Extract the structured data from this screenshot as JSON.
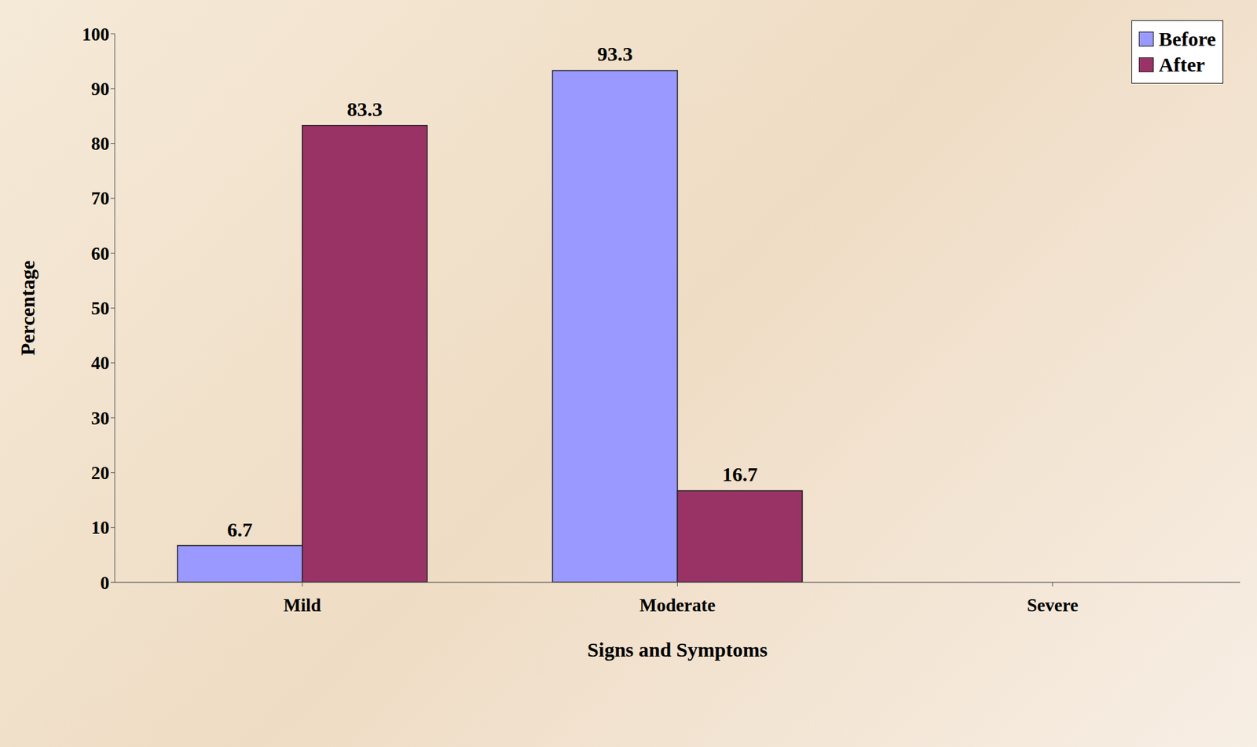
{
  "chart_data": {
    "type": "bar",
    "x_label": "Signs and Symptoms",
    "y_label": "Percentage",
    "categories": [
      "Mild",
      "Moderate",
      "Severe"
    ],
    "series": [
      {
        "name": "Before",
        "color": "#9999ff",
        "values": [
          6.7,
          93.3,
          0
        ]
      },
      {
        "name": "After",
        "color": "#993366",
        "values": [
          83.3,
          16.7,
          0
        ]
      }
    ],
    "ylim": [
      0,
      100
    ],
    "yticks": [
      0,
      10,
      20,
      30,
      40,
      50,
      60,
      70,
      80,
      90,
      100
    ],
    "legend": "upper right",
    "data_labels": true,
    "grid": false
  }
}
